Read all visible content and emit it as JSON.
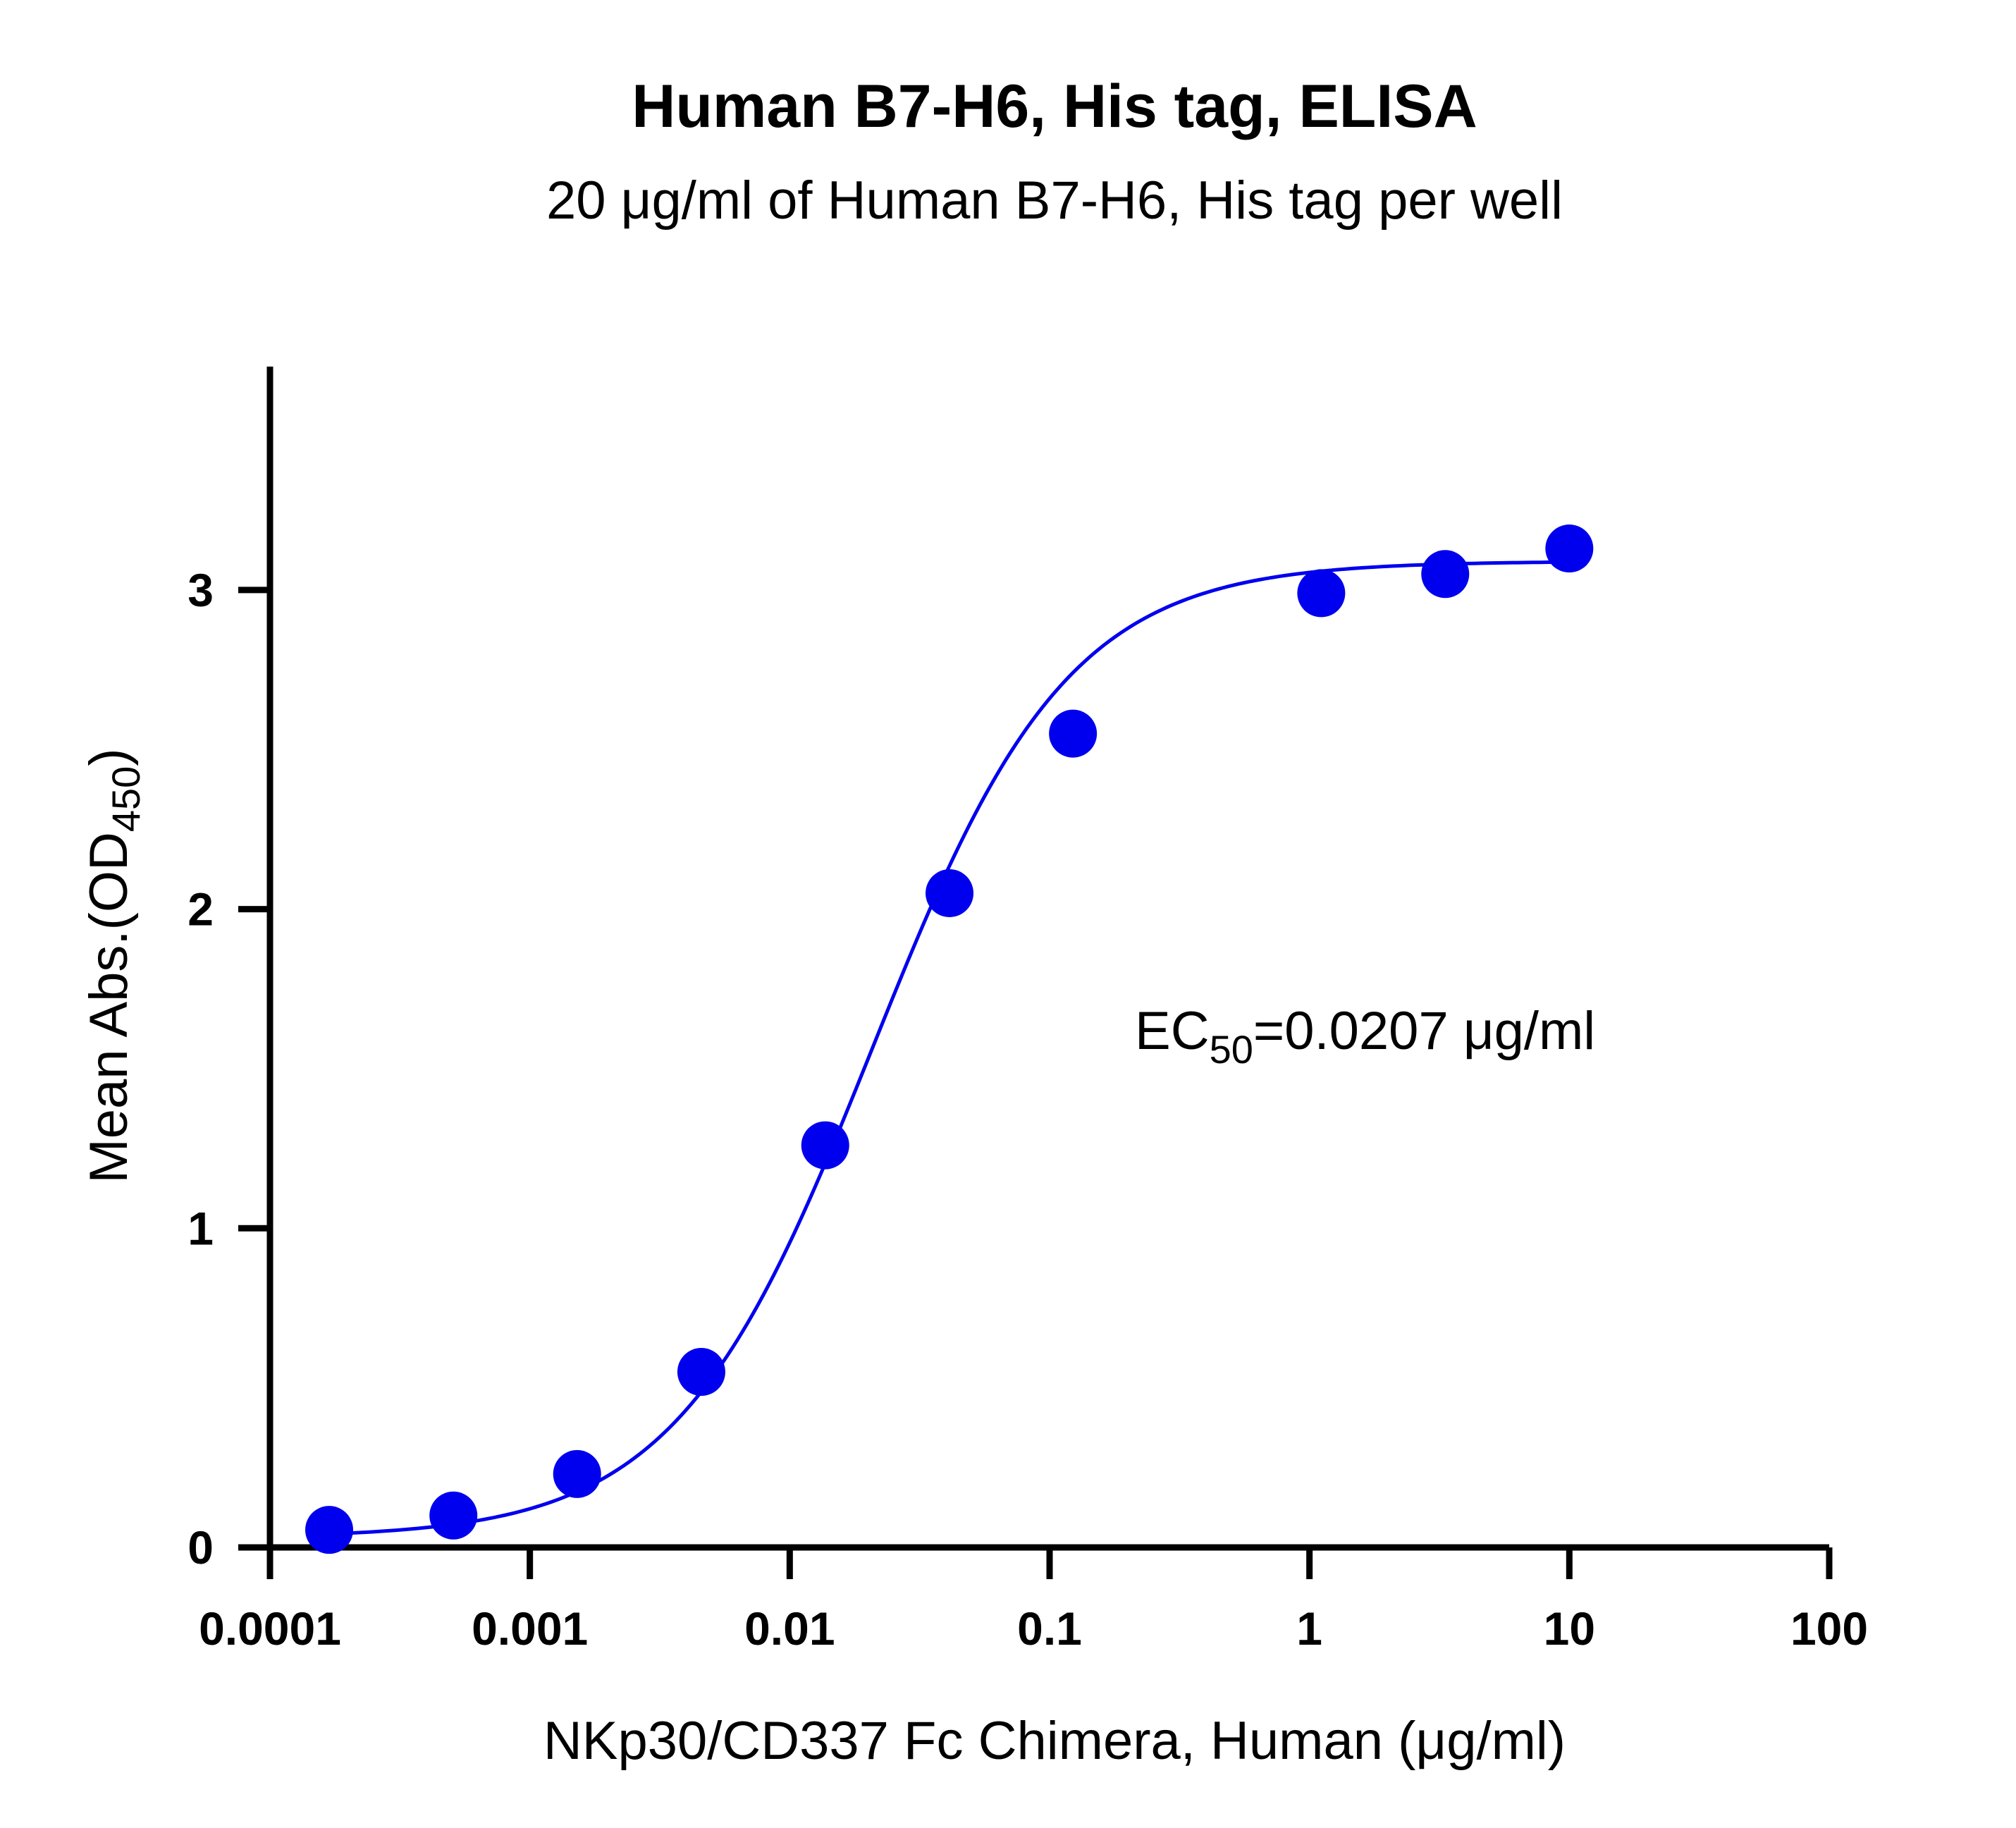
{
  "chart_data": {
    "type": "scatter",
    "title": "Human B7-H6, His tag, ELISA",
    "subtitle": "20 μg/ml of Human B7-H6, His tag per well",
    "xlabel": "NKp30/CD337 Fc Chimera, Human (μg/ml)",
    "ylabel": {
      "main": "Mean Abs.(OD",
      "sub": "450",
      "close": ")"
    },
    "x_scale": "log",
    "xlim": [
      0.0001,
      100
    ],
    "ylim": [
      0,
      3.7
    ],
    "x_ticks": [
      "0.0001",
      "0.001",
      "0.01",
      "0.1",
      "1",
      "10",
      "100"
    ],
    "x_tick_values": [
      0.0001,
      0.001,
      0.01,
      0.1,
      1,
      10,
      100
    ],
    "y_ticks": [
      "0",
      "1",
      "2",
      "3"
    ],
    "y_tick_values": [
      0,
      1,
      2,
      3
    ],
    "series": [
      {
        "color": "#0000ee",
        "x": [
          0.000169,
          0.000508,
          0.00152,
          0.00457,
          0.0137,
          0.0412,
          0.123,
          1.11,
          3.33,
          10
        ],
        "y": [
          0.055,
          0.1,
          0.23,
          0.55,
          1.26,
          2.05,
          2.55,
          2.99,
          3.05,
          3.13
        ]
      }
    ],
    "fit": {
      "bottom": 0.03,
      "top": 3.09,
      "ec50": 0.0207,
      "hill": 1.15,
      "x_range": [
        0.000169,
        10
      ]
    },
    "annotation": {
      "prefix": "EC",
      "sub": "50",
      "suffix": "=0.0207 μg/ml"
    },
    "grid": false,
    "legend": "none"
  }
}
